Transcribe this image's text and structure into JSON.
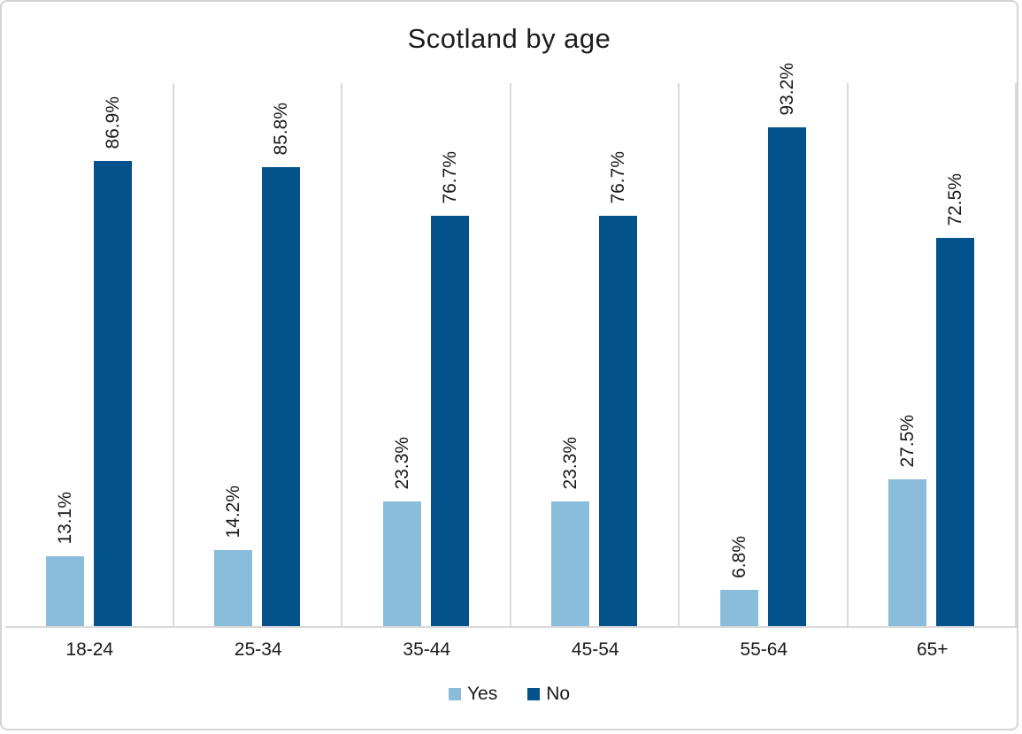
{
  "chart_data": {
    "type": "bar",
    "title": "Scotland by age",
    "categories": [
      "18-24",
      "25-34",
      "35-44",
      "45-54",
      "55-64",
      "65+"
    ],
    "series": [
      {
        "name": "Yes",
        "color": "#8abcdb",
        "values": [
          13.1,
          14.2,
          23.3,
          23.3,
          6.8,
          27.5
        ],
        "labels": [
          "13.1%",
          "14.2%",
          "23.3%",
          "23.3%",
          "6.8%",
          "27.5%"
        ]
      },
      {
        "name": "No",
        "color": "#04528c",
        "values": [
          86.9,
          85.8,
          76.7,
          76.7,
          93.2,
          72.5
        ],
        "labels": [
          "86.9%",
          "85.8%",
          "76.7%",
          "76.7%",
          "93.2%",
          "72.5%"
        ]
      }
    ],
    "ylim": [
      0,
      100
    ],
    "y_axis_labels": "none",
    "grid": "vertical category separators",
    "gridline_color": "#d9d9d9",
    "axis_line_color": "#d8d8d8",
    "data_label_rotation": 90,
    "legend_position": "bottom",
    "legend_labels": [
      "Yes",
      "No"
    ]
  }
}
